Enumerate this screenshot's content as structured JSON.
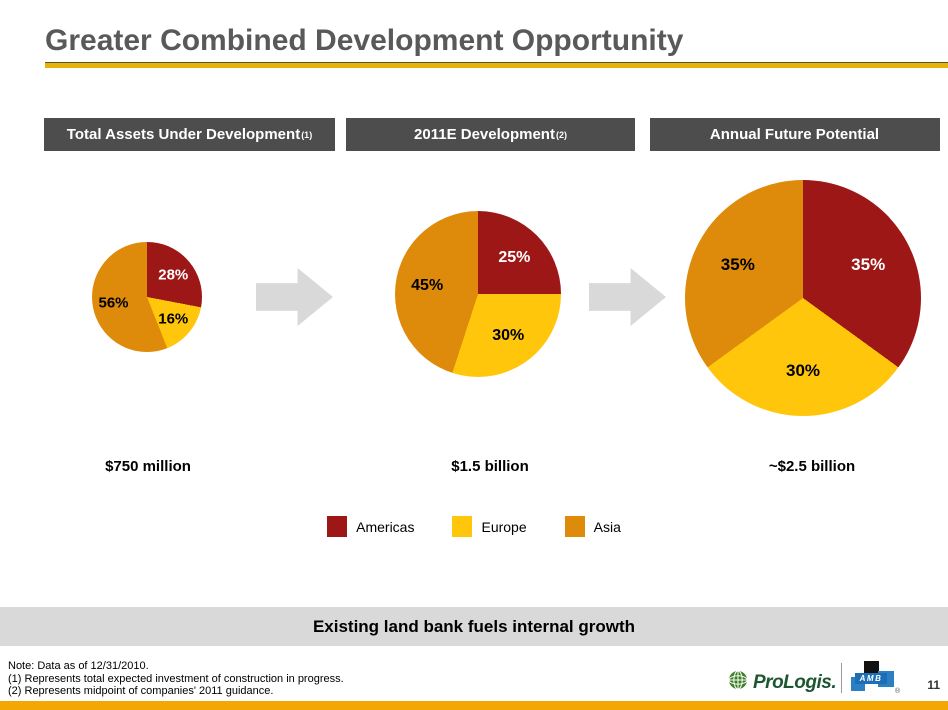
{
  "slide": {
    "title": "Greater Combined Development Opportunity",
    "banner": "Existing land bank fuels internal growth",
    "page_number": "11",
    "footnotes": [
      "Note: Data as of 12/31/2010.",
      "(1) Represents total expected investment of construction in progress.",
      "(2) Represents midpoint of companies' 2011 guidance."
    ],
    "logos": {
      "prologis_text": "ProLogis.",
      "amb_text": "AMB",
      "registered_mark": "®"
    }
  },
  "colors": {
    "americas_red": "#9E1717",
    "europe_yellow": "#FFC60B",
    "asia_orange": "#DE8A0A",
    "header_bar_bg": "#4D4D4D",
    "arrow_gray": "#D9D9D9",
    "banner_bg": "#D9D9D9",
    "title_text": "#595959",
    "title_rule_gold": "#E6B409",
    "bottom_bar_gold": "#F2A702"
  },
  "columns": [
    {
      "header": "Total Assets Under Development",
      "sup": "(1)",
      "total": "$750 million"
    },
    {
      "header": "2011E Development",
      "sup": "(2)",
      "total": "$1.5 billion"
    },
    {
      "header": "Annual Future Potential",
      "sup": "",
      "total": "~$2.5 billion"
    }
  ],
  "legend": [
    {
      "label": "Americas",
      "color": "#9E1717"
    },
    {
      "label": "Europe",
      "color": "#FFC60B"
    },
    {
      "label": "Asia",
      "color": "#DE8A0A"
    }
  ],
  "chart_data": [
    {
      "type": "pie",
      "title": "Total Assets Under Development (1)",
      "total_label": "$750 million",
      "categories": [
        "Americas",
        "Europe",
        "Asia"
      ],
      "values": [
        28,
        16,
        56
      ],
      "unit": "%",
      "colors": [
        "#9E1717",
        "#FFC60B",
        "#DE8A0A"
      ],
      "label_colors": [
        "#FFFFFF",
        "#000000",
        "#000000"
      ],
      "start_angle_deg": 0,
      "direction": "clockwise",
      "legend_position": "bottom-center-shared"
    },
    {
      "type": "pie",
      "title": "2011E Development (2)",
      "total_label": "$1.5 billion",
      "categories": [
        "Americas",
        "Europe",
        "Asia"
      ],
      "values": [
        25,
        30,
        45
      ],
      "unit": "%",
      "colors": [
        "#9E1717",
        "#FFC60B",
        "#DE8A0A"
      ],
      "label_colors": [
        "#FFFFFF",
        "#000000",
        "#000000"
      ],
      "start_angle_deg": 0,
      "direction": "clockwise",
      "legend_position": "bottom-center-shared"
    },
    {
      "type": "pie",
      "title": "Annual Future Potential",
      "total_label": "~$2.5 billion",
      "categories": [
        "Americas",
        "Europe",
        "Asia"
      ],
      "values": [
        35,
        30,
        35
      ],
      "unit": "%",
      "colors": [
        "#9E1717",
        "#FFC60B",
        "#DE8A0A"
      ],
      "label_colors": [
        "#FFFFFF",
        "#000000",
        "#000000"
      ],
      "start_angle_deg": 0,
      "direction": "clockwise",
      "legend_position": "bottom-center-shared"
    }
  ]
}
